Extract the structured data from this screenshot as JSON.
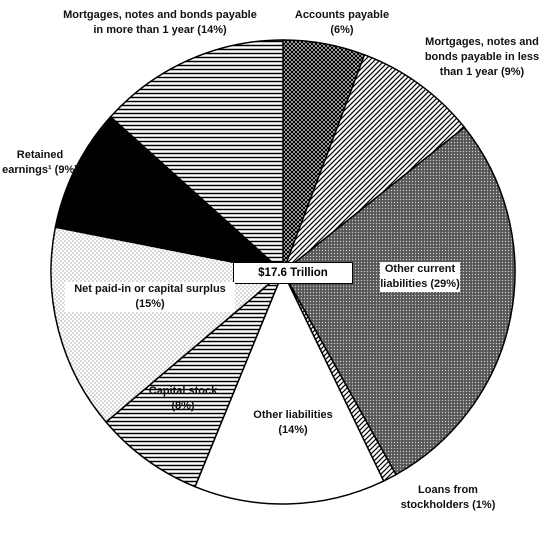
{
  "chart_data": {
    "type": "pie",
    "categories": [
      "Accounts payable",
      "Mortgages, notes and bonds payable in less than 1 year",
      "Other current liabilities",
      "Loans from stockholders",
      "Other liabilities",
      "Capital stock",
      "Net paid-in or capital surplus",
      "Retained earnings¹",
      "Mortgages, notes and bonds payable in more than 1 year"
    ],
    "values": [
      6,
      9,
      29,
      1,
      14,
      8,
      15,
      9,
      14
    ],
    "value_labels": [
      "(6%)",
      "(9%)",
      "(29%)",
      "(1%)",
      "(14%)",
      "(8%)",
      "(15%)",
      "(9%)",
      "(14%)"
    ],
    "patterns": [
      "crosshatch",
      "diagonal",
      "dense-dots",
      "diagonal",
      "none",
      "horizontal",
      "light-dots",
      "solid",
      "horizontal"
    ],
    "total_label": "$17.6 Trillion"
  }
}
